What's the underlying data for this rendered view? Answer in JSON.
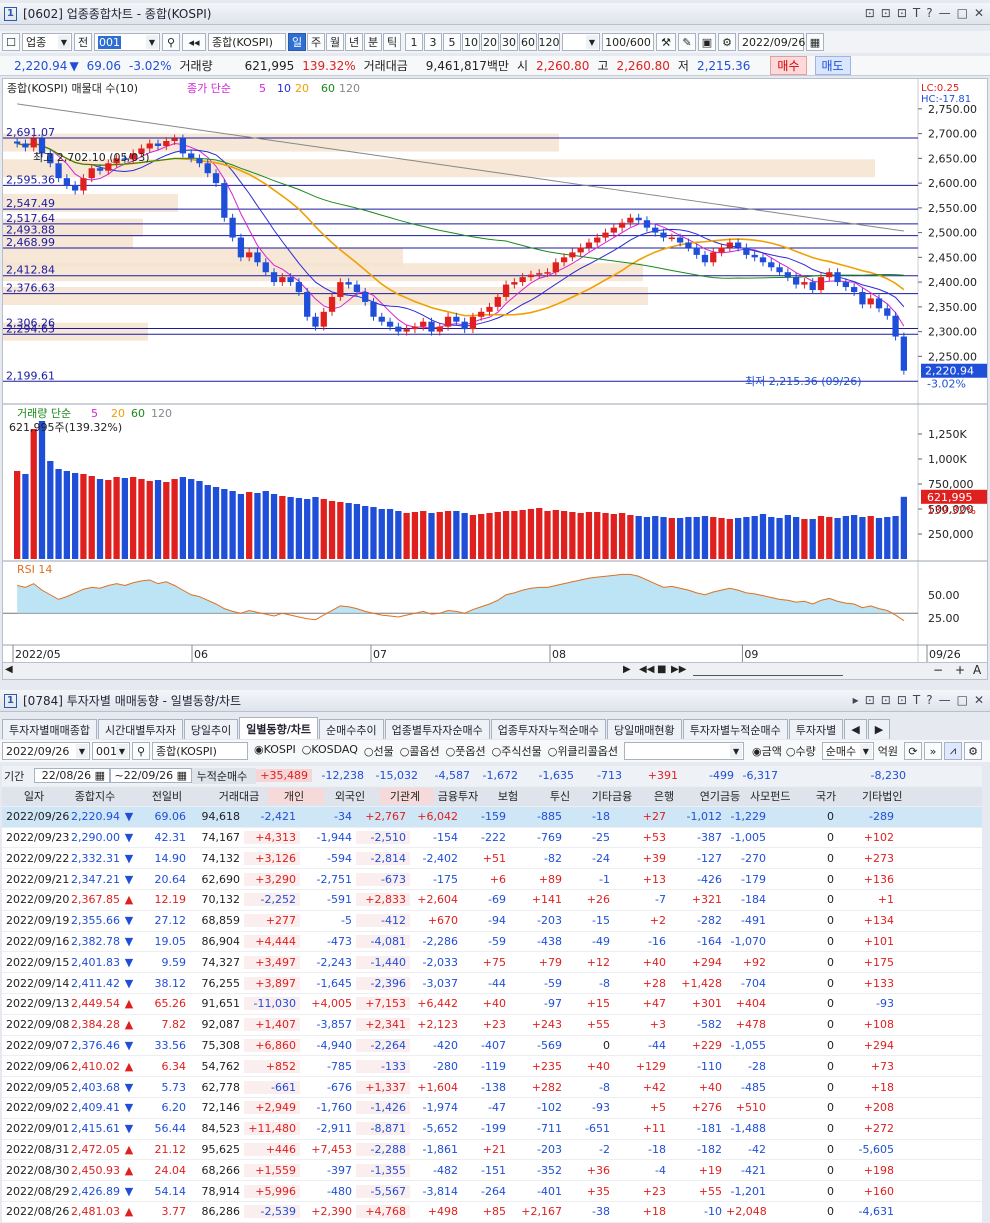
{
  "top_window": {
    "number": "1",
    "title": "[0602] 업종종합차트 - 종합(KOSPI)",
    "buttons": [
      "⊡",
      "⊡",
      "⊡",
      "T",
      "?",
      "—",
      "□",
      "✕"
    ]
  },
  "toolbar": {
    "market": "업종",
    "period_label": "전",
    "code": "001",
    "index_name": "종합(KOSPI)",
    "period_tabs": [
      "일",
      "주",
      "월",
      "년",
      "분",
      "틱"
    ],
    "active_period": "일",
    "nums": [
      "1",
      "3",
      "5",
      "10",
      "20",
      "30",
      "60",
      "120"
    ],
    "count": "100/600",
    "date": "2022/09/26"
  },
  "quote": {
    "price": "2,220.94",
    "arrow": "▼",
    "change": "69.06",
    "pct": "-3.02%",
    "vol_label": "거래량",
    "vol": "621,995",
    "vol_pct": "139.32%",
    "amt_label": "거래대금",
    "amt": "9,461,817백만",
    "open_label": "시",
    "open": "2,260.80",
    "high_label": "고",
    "high": "2,260.80",
    "low_label": "저",
    "low": "2,215.36",
    "buy": "매수",
    "sell": "매도"
  },
  "chart": {
    "legend_main": "종합(KOSPI) 매물대 수(10)",
    "legend_ma": "종가 단순",
    "ma": [
      "5",
      "10",
      "20",
      "60",
      "120"
    ],
    "lc": "LC:0.25",
    "hc": "HC:-17.81",
    "price_axis": [
      "2,750.00",
      "2,700.00",
      "2,650.00",
      "2,600.00",
      "2,550.00",
      "2,500.00",
      "2,450.00",
      "2,400.00",
      "2,350.00",
      "2,300.00",
      "2,250.00"
    ],
    "levels": [
      "2,691.07",
      "2,595.36",
      "2,547.49",
      "2,517.64",
      "2,493.88",
      "2,468.99",
      "2,412.84",
      "2,376.63",
      "2,306.26",
      "2,294.63",
      "2,199.61"
    ],
    "high_note": "최고 2,702.10 (05/03)",
    "low_note": "최저 2,215.36 (09/26)",
    "last": "2,220.94",
    "last_pct": "-3.02%",
    "vol_legend": "거래량 단순",
    "vol_ma": [
      "5",
      "20",
      "60",
      "120"
    ],
    "vol_value": "621,995주(139.32%)",
    "vol_axis": [
      "1,250K",
      "1,000K",
      "750,000",
      "500,000",
      "250,000"
    ],
    "vol_last": "621,995",
    "vol_last_pct": "139.32%",
    "rsi_label": "RSI 14",
    "rsi_axis": [
      "50.00",
      "25.00"
    ],
    "months": [
      "2022/05",
      "06",
      "07",
      "08",
      "09",
      "09/26"
    ],
    "colors": {
      "up": "#e0201f",
      "down": "#1f4fd8",
      "ma5": "#d81fd8",
      "ma10": "#2a2ad8",
      "ma20": "#f0a000",
      "ma60": "#1a8a1a",
      "ma120": "#888888"
    }
  },
  "bottom_window": {
    "number": "1",
    "title": "[0784] 투자자별 매매동향 - 일별동향/차트"
  },
  "tabs": [
    "투자자별매매종합",
    "시간대별투자자",
    "당일추이",
    "일별동향/차트",
    "순매수추이",
    "업종별투자자순매수",
    "업종투자자누적순매수",
    "당일매매현황",
    "투자자별누적순매수",
    "투자자별"
  ],
  "active_tab": "일별동향/차트",
  "filters": {
    "date": "2022/09/26",
    "code": "001",
    "name": "종합(KOSPI)",
    "radios": [
      "KOSPI",
      "KOSDAQ",
      "선물",
      "콜옵션",
      "풋옵션",
      "주식선물",
      "위클리콜옵션"
    ],
    "amount": "금액",
    "qty": "수량",
    "net": "순매수",
    "unit": "억원"
  },
  "period": {
    "label": "기간",
    "from": "22/08/26",
    "to": "22/09/26",
    "sum_label": "누적순매수",
    "sums": [
      "+35,489",
      "-12,238",
      "-15,032",
      "-4,587",
      "-1,672",
      "-1,635",
      "-713",
      "+391",
      "-499",
      "-6,317",
      "",
      "-8,230"
    ]
  },
  "columns": [
    "일자",
    "종합지수",
    "전일비",
    "거래대금",
    "개인",
    "외국인",
    "기관계",
    "금융투자",
    "보험",
    "투신",
    "기타금융",
    "은행",
    "연기금등",
    "사모펀드",
    "국가",
    "기타법인"
  ],
  "rows": [
    [
      "2022/09/26",
      "2,220.94",
      "▼",
      "69.06",
      "94,618",
      "-2,421",
      "-34",
      "+2,767",
      "+6,042",
      "-159",
      "-885",
      "-18",
      "+27",
      "-1,012",
      "-1,229",
      "0",
      "-289"
    ],
    [
      "2022/09/23",
      "2,290.00",
      "▼",
      "42.31",
      "74,167",
      "+4,313",
      "-1,944",
      "-2,510",
      "-154",
      "-222",
      "-769",
      "-25",
      "+53",
      "-387",
      "-1,005",
      "0",
      "+102"
    ],
    [
      "2022/09/22",
      "2,332.31",
      "▼",
      "14.90",
      "74,132",
      "+3,126",
      "-594",
      "-2,814",
      "-2,402",
      "+51",
      "-82",
      "-24",
      "+39",
      "-127",
      "-270",
      "0",
      "+273"
    ],
    [
      "2022/09/21",
      "2,347.21",
      "▼",
      "20.64",
      "62,690",
      "+3,290",
      "-2,751",
      "-673",
      "-175",
      "+6",
      "+89",
      "-1",
      "+13",
      "-426",
      "-179",
      "0",
      "+136"
    ],
    [
      "2022/09/20",
      "2,367.85",
      "▲",
      "12.19",
      "70,132",
      "-2,252",
      "-591",
      "+2,833",
      "+2,604",
      "-69",
      "+141",
      "+26",
      "-7",
      "+321",
      "-184",
      "0",
      "+1"
    ],
    [
      "2022/09/19",
      "2,355.66",
      "▼",
      "27.12",
      "68,859",
      "+277",
      "-5",
      "-412",
      "+670",
      "-94",
      "-203",
      "-15",
      "+2",
      "-282",
      "-491",
      "0",
      "+134"
    ],
    [
      "2022/09/16",
      "2,382.78",
      "▼",
      "19.05",
      "86,904",
      "+4,444",
      "-473",
      "-4,081",
      "-2,286",
      "-59",
      "-438",
      "-49",
      "-16",
      "-164",
      "-1,070",
      "0",
      "+101"
    ],
    [
      "2022/09/15",
      "2,401.83",
      "▼",
      "9.59",
      "74,327",
      "+3,497",
      "-2,243",
      "-1,440",
      "-2,033",
      "+75",
      "+79",
      "+12",
      "+40",
      "+294",
      "+92",
      "0",
      "+175"
    ],
    [
      "2022/09/14",
      "2,411.42",
      "▼",
      "38.12",
      "76,255",
      "+3,897",
      "-1,645",
      "-2,396",
      "-3,037",
      "-44",
      "-59",
      "-8",
      "+28",
      "+1,428",
      "-704",
      "0",
      "+133"
    ],
    [
      "2022/09/13",
      "2,449.54",
      "▲",
      "65.26",
      "91,651",
      "-11,030",
      "+4,005",
      "+7,153",
      "+6,442",
      "+40",
      "-97",
      "+15",
      "+47",
      "+301",
      "+404",
      "0",
      "-93"
    ],
    [
      "2022/09/08",
      "2,384.28",
      "▲",
      "7.82",
      "92,087",
      "+1,407",
      "-3,857",
      "+2,341",
      "+2,123",
      "+23",
      "+243",
      "+55",
      "+3",
      "-582",
      "+478",
      "0",
      "+108"
    ],
    [
      "2022/09/07",
      "2,376.46",
      "▼",
      "33.56",
      "75,308",
      "+6,860",
      "-4,940",
      "-2,264",
      "-420",
      "-407",
      "-569",
      "0",
      "-44",
      "+229",
      "-1,055",
      "0",
      "+294"
    ],
    [
      "2022/09/06",
      "2,410.02",
      "▲",
      "6.34",
      "54,762",
      "+852",
      "-785",
      "-133",
      "-280",
      "-119",
      "+235",
      "+40",
      "+129",
      "-110",
      "-28",
      "0",
      "+73"
    ],
    [
      "2022/09/05",
      "2,403.68",
      "▼",
      "5.73",
      "62,778",
      "-661",
      "-676",
      "+1,337",
      "+1,604",
      "-138",
      "+282",
      "-8",
      "+42",
      "+40",
      "-485",
      "0",
      "+18"
    ],
    [
      "2022/09/02",
      "2,409.41",
      "▼",
      "6.20",
      "72,146",
      "+2,949",
      "-1,760",
      "-1,426",
      "-1,974",
      "-47",
      "-102",
      "-93",
      "+5",
      "+276",
      "+510",
      "0",
      "+208"
    ],
    [
      "2022/09/01",
      "2,415.61",
      "▼",
      "56.44",
      "84,523",
      "+11,480",
      "-2,911",
      "-8,871",
      "-5,652",
      "-199",
      "-711",
      "-651",
      "+11",
      "-181",
      "-1,488",
      "0",
      "+272"
    ],
    [
      "2022/08/31",
      "2,472.05",
      "▲",
      "21.12",
      "95,625",
      "+446",
      "+7,453",
      "-2,288",
      "-1,861",
      "+21",
      "-203",
      "-2",
      "-18",
      "-182",
      "-42",
      "0",
      "-5,605"
    ],
    [
      "2022/08/30",
      "2,450.93",
      "▲",
      "24.04",
      "68,266",
      "+1,559",
      "-397",
      "-1,355",
      "-482",
      "-151",
      "-352",
      "+36",
      "-4",
      "+19",
      "-421",
      "0",
      "+198"
    ],
    [
      "2022/08/29",
      "2,426.89",
      "▼",
      "54.14",
      "78,914",
      "+5,996",
      "-480",
      "-5,567",
      "-3,814",
      "-264",
      "-401",
      "+35",
      "+23",
      "+55",
      "-1,201",
      "0",
      "+160"
    ],
    [
      "2022/08/26",
      "2,481.03",
      "▲",
      "3.77",
      "86,286",
      "-2,539",
      "+2,390",
      "+4,768",
      "+498",
      "+85",
      "+2,167",
      "-38",
      "+18",
      "-10",
      "+2,048",
      "0",
      "-4,631"
    ]
  ]
}
